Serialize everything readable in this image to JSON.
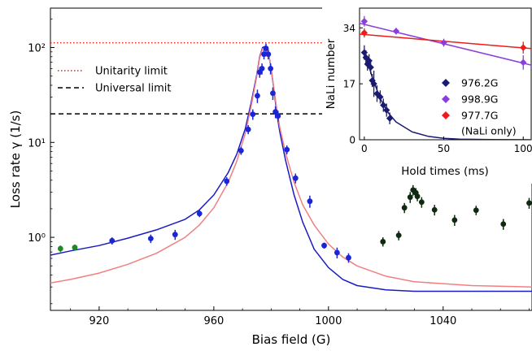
{
  "chart_data": [
    {
      "type": "scatter",
      "xlabel": "Bias field (G)",
      "ylabel": "Loss rate γ (1/s)",
      "xlim": [
        903,
        1071
      ],
      "ylim": [
        0.17,
        260
      ],
      "yscale": "log",
      "x_ticks": [
        920,
        960,
        1000,
        1040
      ],
      "y_ticks": [
        {
          "value": 1,
          "label": "10⁰"
        },
        {
          "value": 10,
          "label": "10¹"
        },
        {
          "value": 100,
          "label": "10²"
        }
      ],
      "legend_position": "upper-left",
      "reference_lines": [
        {
          "name": "Unitarity limit",
          "y": 112,
          "style": "dotted",
          "color": "#e0241b"
        },
        {
          "name": "Universal limit",
          "y": 20,
          "style": "dashed",
          "color": "#000000"
        }
      ],
      "curves": [
        {
          "color": "#1b1bc4",
          "x": [
            903,
            910,
            920,
            930,
            940,
            950,
            955,
            960,
            965,
            968,
            971,
            973,
            975,
            976,
            977,
            978,
            979,
            980,
            981,
            982,
            983,
            985,
            988,
            991,
            995,
            1000,
            1005,
            1010,
            1020,
            1030,
            1050,
            1071
          ],
          "y": [
            0.65,
            0.72,
            0.82,
            0.98,
            1.2,
            1.55,
            1.95,
            2.8,
            4.8,
            7.5,
            14,
            26,
            52,
            80,
            100,
            103,
            90,
            60,
            35,
            20,
            13,
            6.5,
            2.8,
            1.45,
            0.75,
            0.48,
            0.36,
            0.31,
            0.28,
            0.27,
            0.27,
            0.27
          ]
        },
        {
          "color": "#f08080",
          "x": [
            903,
            910,
            920,
            930,
            940,
            950,
            955,
            960,
            965,
            968,
            971,
            973,
            975,
            976,
            977,
            978,
            979,
            980,
            981,
            982,
            983,
            985,
            988,
            991,
            995,
            1000,
            1005,
            1010,
            1020,
            1030,
            1050,
            1071
          ],
          "y": [
            0.33,
            0.36,
            0.42,
            0.52,
            0.68,
            1.0,
            1.35,
            2.05,
            3.8,
            6.3,
            12.5,
            24,
            50,
            78,
            97,
            100,
            88,
            60,
            36,
            22,
            14.5,
            7.8,
            3.8,
            2.2,
            1.35,
            0.85,
            0.62,
            0.5,
            0.39,
            0.34,
            0.31,
            0.3
          ]
        }
      ],
      "scatter": [
        {
          "color": "#1b25d6",
          "points": [
            {
              "x": 924.5,
              "y": 0.92,
              "err": 0.08
            },
            {
              "x": 938,
              "y": 0.97,
              "err": 0.1
            },
            {
              "x": 946.5,
              "y": 1.07,
              "err": 0.13
            },
            {
              "x": 955,
              "y": 1.78,
              "err": 0.15
            },
            {
              "x": 964.5,
              "y": 3.9,
              "err": 0.4
            },
            {
              "x": 969.5,
              "y": 8.2,
              "err": 0.8
            },
            {
              "x": 972,
              "y": 13.7,
              "err": 1.5
            },
            {
              "x": 973.6,
              "y": 19.8,
              "err": 2.5
            },
            {
              "x": 975.2,
              "y": 31,
              "err": 5
            },
            {
              "x": 976,
              "y": 55,
              "err": 7
            },
            {
              "x": 976.8,
              "y": 60,
              "err": 8
            },
            {
              "x": 977.5,
              "y": 85,
              "err": 10
            },
            {
              "x": 978.2,
              "y": 98,
              "err": 12
            },
            {
              "x": 979,
              "y": 85,
              "err": 10
            },
            {
              "x": 979.8,
              "y": 60,
              "err": 8
            },
            {
              "x": 980.6,
              "y": 33,
              "err": 5
            },
            {
              "x": 981.5,
              "y": 21,
              "err": 3
            },
            {
              "x": 982.4,
              "y": 19,
              "err": 2.5
            },
            {
              "x": 985.5,
              "y": 8.4,
              "err": 0.9
            },
            {
              "x": 988.5,
              "y": 4.2,
              "err": 0.5
            },
            {
              "x": 993.5,
              "y": 2.4,
              "err": 0.35
            },
            {
              "x": 998.5,
              "y": 0.82,
              "err": 0.06
            },
            {
              "x": 1003,
              "y": 0.69,
              "err": 0.09
            },
            {
              "x": 1007,
              "y": 0.61,
              "err": 0.07
            }
          ]
        },
        {
          "color": "#1f8a1f",
          "points": [
            {
              "x": 906.5,
              "y": 0.76,
              "err": 0.06
            },
            {
              "x": 911.5,
              "y": 0.78,
              "err": 0.06
            }
          ]
        },
        {
          "color": "#0f2a10",
          "points": [
            {
              "x": 1019,
              "y": 0.9,
              "err": 0.1
            },
            {
              "x": 1024.5,
              "y": 1.05,
              "err": 0.12
            },
            {
              "x": 1026.5,
              "y": 2.05,
              "err": 0.25
            },
            {
              "x": 1028.5,
              "y": 2.65,
              "err": 0.35
            },
            {
              "x": 1029.5,
              "y": 3.15,
              "err": 0.4
            },
            {
              "x": 1030.5,
              "y": 2.95,
              "err": 0.35
            },
            {
              "x": 1031,
              "y": 2.7,
              "err": 0.3
            },
            {
              "x": 1032.5,
              "y": 2.35,
              "err": 0.3
            },
            {
              "x": 1037,
              "y": 1.95,
              "err": 0.25
            },
            {
              "x": 1044,
              "y": 1.52,
              "err": 0.2
            },
            {
              "x": 1051.5,
              "y": 1.93,
              "err": 0.22
            },
            {
              "x": 1061,
              "y": 1.38,
              "err": 0.18
            },
            {
              "x": 1070,
              "y": 2.3,
              "err": 0.3
            }
          ]
        }
      ]
    },
    {
      "type": "scatter",
      "xlabel": "Hold times (ms)",
      "ylabel": "NaLi number",
      "xlim": [
        -3,
        105
      ],
      "ylim": [
        0,
        40
      ],
      "x_ticks": [
        0,
        50,
        100
      ],
      "y_ticks": [
        0,
        17,
        34
      ],
      "legend_position": "lower-right",
      "series": [
        {
          "name": "976.2G",
          "color": "#1a1a72",
          "points": [
            {
              "x": 0,
              "y": 26.5,
              "err": 2.2
            },
            {
              "x": 1,
              "y": 25,
              "err": 2.2
            },
            {
              "x": 2,
              "y": 23,
              "err": 2.0
            },
            {
              "x": 3,
              "y": 24,
              "err": 2.0
            },
            {
              "x": 4,
              "y": 22,
              "err": 2.0
            },
            {
              "x": 5,
              "y": 18,
              "err": 2.0
            },
            {
              "x": 6,
              "y": 17,
              "err": 4.0
            },
            {
              "x": 8,
              "y": 14,
              "err": 2.5
            },
            {
              "x": 10,
              "y": 13,
              "err": 2.0
            },
            {
              "x": 12,
              "y": 10.5,
              "err": 2.0
            },
            {
              "x": 14,
              "y": 9,
              "err": 2.0
            },
            {
              "x": 16,
              "y": 6.5,
              "err": 1.8
            }
          ],
          "fit": {
            "x": [
              0,
              5,
              10,
              15,
              20,
              30,
              40,
              50,
              60,
              80,
              105
            ],
            "y": [
              27,
              19,
              12.5,
              8.2,
              5.4,
              2.4,
              1.05,
              0.45,
              0.2,
              0.04,
              0.0
            ]
          }
        },
        {
          "name": "998.9G",
          "color": "#8a3fdc",
          "points": [
            {
              "x": 0,
              "y": 36,
              "err": 1.6
            },
            {
              "x": 20,
              "y": 33,
              "err": 1.0
            },
            {
              "x": 50,
              "y": 29.5,
              "err": 1.2
            },
            {
              "x": 100,
              "y": 23.5,
              "err": 2.2
            }
          ],
          "fit": {
            "x": [
              -3,
              105
            ],
            "y": [
              35.4,
              22.7
            ]
          }
        },
        {
          "name": "977.7G\n(NaLi only)",
          "color": "#ec1c1c",
          "points": [
            {
              "x": 0,
              "y": 32.5,
              "err": 1.4
            },
            {
              "x": 100,
              "y": 28,
              "err": 1.8
            }
          ],
          "fit": {
            "x": [
              -3,
              105
            ],
            "y": [
              32.1,
              27.7
            ]
          }
        }
      ]
    }
  ]
}
